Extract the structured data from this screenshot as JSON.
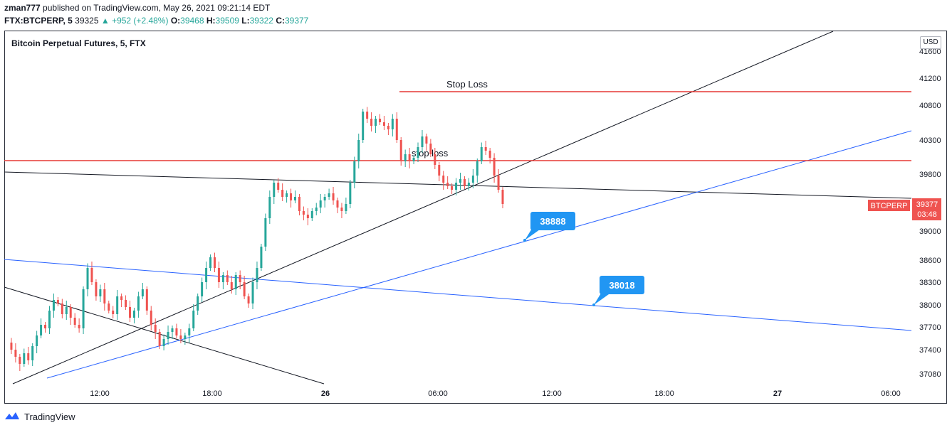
{
  "header": {
    "author": "zman777",
    "published_text": "published on TradingView.com, May 26, 2021 09:21:14 EDT",
    "symbol": "FTX:BTCPERP, 5",
    "last": "39325",
    "change": "▲ +952 (+2.48%)",
    "open_label": "O:",
    "open": "39468",
    "high_label": "H:",
    "high": "39509",
    "low_label": "L:",
    "low": "39322",
    "close_label": "C:",
    "close": "39377"
  },
  "footer": {
    "brand": "TradingView"
  },
  "colors": {
    "up": "#26a69a",
    "down": "#ef5350",
    "red_line": "#e53935",
    "blue_line": "#2962ff",
    "callout": "#2196f3"
  },
  "chart_data": {
    "type": "candlestick",
    "title": "Bitcoin Perpetual Futures, 5, FTX",
    "currency_label": "USD",
    "y_ticks": [
      41600,
      41200,
      40800,
      40300,
      39800,
      39377,
      39000,
      38600,
      38300,
      38000,
      37700,
      37400,
      37080
    ],
    "y_tick_labels": [
      "41600",
      "41200",
      "40800",
      "40300",
      "39800",
      "39377",
      "39000",
      "38600",
      "38300",
      "38000",
      "37700",
      "37400",
      "37080"
    ],
    "x_tick_labels": [
      "12:00",
      "18:00",
      "26",
      "06:00",
      "12:00",
      "18:00",
      "27",
      "06:00"
    ],
    "price_tag": {
      "symbol": "BTCPERP",
      "price": "39377",
      "countdown": "03:48"
    },
    "horizontal_lines": [
      {
        "label": "Stop Loss",
        "price": 40980
      },
      {
        "label": "stop loss",
        "price": 40010
      }
    ],
    "callouts": [
      {
        "label": "38888"
      },
      {
        "label": "38018"
      }
    ],
    "candle_path": [
      37450,
      37350,
      37250,
      37150,
      37300,
      37200,
      37400,
      37550,
      37700,
      37650,
      37900,
      38050,
      38000,
      37850,
      37950,
      37800,
      37700,
      37650,
      38200,
      38500,
      38300,
      38100,
      38200,
      38000,
      37900,
      37850,
      38100,
      38050,
      37950,
      37800,
      37900,
      38100,
      38200,
      37900,
      37700,
      37600,
      37400,
      37500,
      37600,
      37650,
      37550,
      37500,
      37550,
      37650,
      37900,
      38100,
      38300,
      38500,
      38650,
      38500,
      38300,
      38400,
      38300,
      38200,
      38400,
      38300,
      38100,
      38000,
      38300,
      38500,
      38800,
      39200,
      39500,
      39700,
      39600,
      39500,
      39550,
      39450,
      39500,
      39300,
      39250,
      39200,
      39300,
      39350,
      39450,
      39500,
      39550,
      39450,
      39350,
      39300,
      39400,
      39700,
      40000,
      40300,
      40700,
      40600,
      40500,
      40600,
      40550,
      40500,
      40450,
      40600,
      40300,
      40000,
      40100,
      40000,
      40050,
      40200,
      40350,
      40250,
      40100,
      39950,
      39800,
      39700,
      39650,
      39600,
      39700,
      39750,
      39650,
      39700,
      39800,
      40000,
      40200,
      40150,
      40050,
      39800,
      39600,
      39400
    ]
  }
}
